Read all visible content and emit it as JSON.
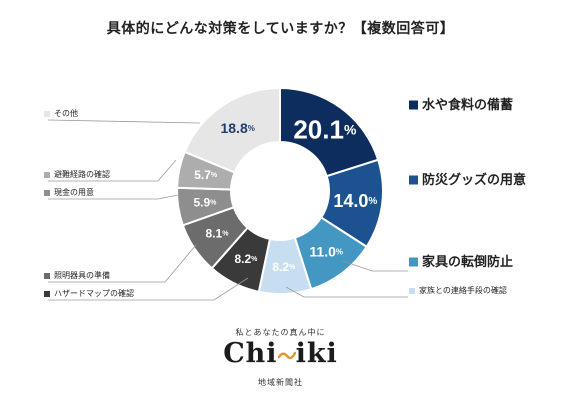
{
  "chart_data": {
    "type": "pie",
    "title": "具体的にどんな対策をしていますか？【複数回答可】",
    "unit": "%",
    "slices": [
      {
        "label": "水や食料の備蓄",
        "value": 20.1,
        "color": "#0d2d5e",
        "text_color": "#ffffff",
        "emphasis": true
      },
      {
        "label": "防災グッズの用意",
        "value": 14.0,
        "color": "#1c5290",
        "text_color": "#ffffff",
        "emphasis": true
      },
      {
        "label": "家具の転倒防止",
        "value": 11.0,
        "color": "#4397c2",
        "text_color": "#ffffff",
        "emphasis": true
      },
      {
        "label": "家族との連絡手段の確認",
        "value": 8.2,
        "color": "#c7def0",
        "text_color": "#ffffff",
        "emphasis": false
      },
      {
        "label": "ハザードマップの確認",
        "value": 8.2,
        "color": "#3a3a3a",
        "text_color": "#ffffff",
        "emphasis": false
      },
      {
        "label": "照明器具の準備",
        "value": 8.1,
        "color": "#6c6c6c",
        "text_color": "#ffffff",
        "emphasis": false
      },
      {
        "label": "現金の用意",
        "value": 5.9,
        "color": "#8e8e8e",
        "text_color": "#ffffff",
        "emphasis": false
      },
      {
        "label": "避難経路の確認",
        "value": 5.7,
        "color": "#adadad",
        "text_color": "#ffffff",
        "emphasis": false
      },
      {
        "label": "その他",
        "value": 18.8,
        "color": "#e6e6e6",
        "text_color": "#1f3f6e",
        "emphasis": false
      }
    ]
  },
  "logo": {
    "tagline": "私とあなたの真ん中に",
    "name_left": "Chi",
    "name_right": "iki",
    "subtitle": "地域新聞社"
  }
}
